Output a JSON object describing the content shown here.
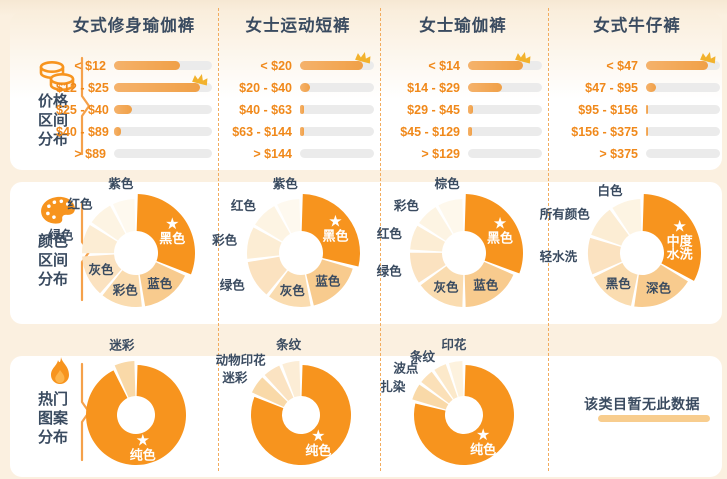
{
  "columns": [
    {
      "title": "女式修身瑜伽裤"
    },
    {
      "title": "女士运动短裤"
    },
    {
      "title": "女士瑜伽裤"
    },
    {
      "title": "女式牛仔裤"
    }
  ],
  "rail": [
    {
      "icon": "coins-icon",
      "lines": [
        "价格",
        "区间",
        "分布"
      ]
    },
    {
      "icon": "palette-icon",
      "lines": [
        "颜色",
        "区间",
        "分布"
      ]
    },
    {
      "icon": "flame-icon",
      "lines": [
        "热门",
        "图案",
        "分布"
      ]
    }
  ],
  "no_data": {
    "text": "该类目暂无此数据",
    "row_group": "热门图案分布",
    "category": "女式牛仔裤"
  },
  "colors": {
    "accent": "#F7941E",
    "bar_fill": "#F2A75C",
    "bar_track": "#EBEBEB",
    "price_label": "#F0891B",
    "heading": "#3A4B60",
    "separator": "#F2AC5E",
    "crown": "#F2B22D",
    "page_bg": "#FBF0E0",
    "panel_bg": "#FFFFFF",
    "donut_label": "#3A4B60",
    "star": "#FFFFFF"
  },
  "chart_data": [
    {
      "type": "bar",
      "row_group": "价格区间分布",
      "category": "女式修身瑜伽裤",
      "orientation": "horizontal",
      "value_unit": "relative_share_pct_estimated",
      "categories": [
        "< $12",
        "$12 - $25",
        "$25 - $40",
        "$40 - $89",
        "> $89"
      ],
      "values": [
        67,
        88,
        18,
        7,
        0
      ],
      "crown_index": 1
    },
    {
      "type": "bar",
      "row_group": "价格区间分布",
      "category": "女士运动短裤",
      "orientation": "horizontal",
      "value_unit": "relative_share_pct_estimated",
      "categories": [
        "< $20",
        "$20 - $40",
        "$40 - $63",
        "$63 - $144",
        "> $144"
      ],
      "values": [
        85,
        14,
        5,
        5,
        0
      ],
      "crown_index": 0
    },
    {
      "type": "bar",
      "row_group": "价格区间分布",
      "category": "女士瑜伽裤",
      "orientation": "horizontal",
      "value_unit": "relative_share_pct_estimated",
      "categories": [
        "< $14",
        "$14 - $29",
        "$29 - $45",
        "$45 - $129",
        "> $129"
      ],
      "values": [
        74,
        46,
        7,
        5,
        0
      ],
      "crown_index": 0
    },
    {
      "type": "bar",
      "row_group": "价格区间分布",
      "category": "女式牛仔裤",
      "orientation": "horizontal",
      "value_unit": "relative_share_pct_estimated",
      "categories": [
        "< $47",
        "$47 - $95",
        "$95 - $156",
        "$156 - $375",
        "> $375"
      ],
      "values": [
        84,
        14,
        3,
        3,
        0
      ],
      "crown_index": 0
    },
    {
      "type": "pie",
      "row_group": "颜色区间分布",
      "category": "女式修身瑜伽裤",
      "value_unit": "angle_deg_estimated",
      "slices": [
        {
          "label": "黑色",
          "deg": 113,
          "star": true,
          "raised": true,
          "color": "#F7941E",
          "labelPos": "star"
        },
        {
          "label": "蓝色",
          "deg": 59,
          "color": "#F8CB8E",
          "labelPos": "in"
        },
        {
          "label": "彩色",
          "deg": 48,
          "color": "#FADCB0",
          "labelPos": "in"
        },
        {
          "label": "灰色",
          "deg": 48,
          "color": "#FBE2C0",
          "labelPos": "in"
        },
        {
          "label": "绿色",
          "deg": 35,
          "color": "#FCEDD4",
          "labelPos": "out"
        },
        {
          "label": "红色",
          "deg": 30,
          "color": "#FDF4E3",
          "labelPos": "out"
        },
        {
          "label": "紫色",
          "deg": 27,
          "color": "#FEF9EF",
          "labelPos": "out"
        }
      ]
    },
    {
      "type": "pie",
      "row_group": "颜色区间分布",
      "category": "女士运动短裤",
      "value_unit": "angle_deg_estimated",
      "slices": [
        {
          "label": "黑色",
          "deg": 105,
          "star": true,
          "raised": true,
          "color": "#F7941E",
          "labelPos": "star"
        },
        {
          "label": "蓝色",
          "deg": 63,
          "color": "#F8CB8E",
          "labelPos": "in"
        },
        {
          "label": "灰色",
          "deg": 50,
          "color": "#FADCB0",
          "labelPos": "in"
        },
        {
          "label": "绿色",
          "deg": 44,
          "color": "#FBE2C0",
          "labelPos": "out"
        },
        {
          "label": "彩色",
          "deg": 38,
          "color": "#FCEDD4",
          "labelPos": "out"
        },
        {
          "label": "红色",
          "deg": 32,
          "color": "#FDF4E3",
          "labelPos": "out"
        },
        {
          "label": "紫色",
          "deg": 28,
          "color": "#FEF9EF",
          "labelPos": "out"
        }
      ]
    },
    {
      "type": "pie",
      "row_group": "颜色区间分布",
      "category": "女士瑜伽裤",
      "value_unit": "angle_deg_estimated",
      "slices": [
        {
          "label": "黑色",
          "deg": 112,
          "star": true,
          "raised": true,
          "color": "#F7941E",
          "labelPos": "star"
        },
        {
          "label": "蓝色",
          "deg": 68,
          "color": "#F8CB8E",
          "labelPos": "in"
        },
        {
          "label": "灰色",
          "deg": 55,
          "color": "#FADCB0",
          "labelPos": "in"
        },
        {
          "label": "绿色",
          "deg": 37,
          "color": "#FBE2C0",
          "labelPos": "out"
        },
        {
          "label": "红色",
          "deg": 30,
          "color": "#FCEDD4",
          "labelPos": "out"
        },
        {
          "label": "彩色",
          "deg": 28,
          "color": "#FDF4E3",
          "labelPos": "out"
        },
        {
          "label": "棕色",
          "deg": 30,
          "color": "#FEF8EC",
          "labelPos": "out"
        }
      ]
    },
    {
      "type": "pie",
      "row_group": "颜色区间分布",
      "category": "女式牛仔裤",
      "value_unit": "angle_deg_estimated",
      "slices": [
        {
          "label": "中度水洗",
          "label_lines": [
            "中度",
            "水洗"
          ],
          "deg": 120,
          "star": true,
          "raised": true,
          "color": "#F7941E",
          "labelPos": "star"
        },
        {
          "label": "深色",
          "deg": 70,
          "color": "#F8CB8E",
          "labelPos": "in"
        },
        {
          "label": "黑色",
          "deg": 55,
          "color": "#FADCB0",
          "labelPos": "in"
        },
        {
          "label": "轻水洗",
          "deg": 43,
          "color": "#FBE2C0",
          "labelPos": "out"
        },
        {
          "label": "所有颜色",
          "deg": 37,
          "color": "#FCEDD4",
          "labelPos": "out"
        },
        {
          "label": "白色",
          "deg": 35,
          "color": "#FDF4E3",
          "labelPos": "out"
        }
      ]
    },
    {
      "type": "pie",
      "row_group": "热门图案分布",
      "category": "女式修身瑜伽裤",
      "value_unit": "angle_deg_estimated",
      "slices": [
        {
          "label": "纯色",
          "deg": 335,
          "star": true,
          "color": "#F7941E",
          "labelPos": "star"
        },
        {
          "label": "迷彩",
          "deg": 25,
          "raised": true,
          "color": "#F9D9A8",
          "labelPos": "out"
        }
      ]
    },
    {
      "type": "pie",
      "row_group": "热门图案分布",
      "category": "女士运动短裤",
      "value_unit": "angle_deg_estimated",
      "slices": [
        {
          "label": "纯色",
          "deg": 293,
          "star": true,
          "color": "#F7941E",
          "labelPos": "star"
        },
        {
          "label": "迷彩",
          "deg": 23,
          "raised": true,
          "color": "#F9D9A8",
          "labelPos": "out"
        },
        {
          "label": "动物印花",
          "deg": 22,
          "raised": true,
          "color": "#FBE3C2",
          "labelPos": "out"
        },
        {
          "label": "条纹",
          "deg": 22,
          "raised": true,
          "color": "#FCEDD6",
          "labelPos": "out"
        }
      ]
    },
    {
      "type": "pie",
      "row_group": "热门图案分布",
      "category": "女士瑜伽裤",
      "value_unit": "angle_deg_estimated",
      "slices": [
        {
          "label": "纯色",
          "deg": 285,
          "star": true,
          "color": "#F7941E",
          "labelPos": "star"
        },
        {
          "label": "扎染",
          "deg": 21,
          "raised": true,
          "color": "#F9D9A8",
          "labelPos": "out"
        },
        {
          "label": "波点",
          "deg": 19,
          "raised": true,
          "color": "#FBE0B8",
          "labelPos": "out"
        },
        {
          "label": "条纹",
          "deg": 17,
          "raised": true,
          "color": "#FCE9CA",
          "labelPos": "out"
        },
        {
          "label": "印花",
          "deg": 18,
          "raised": true,
          "color": "#FDF2DE",
          "labelPos": "out"
        }
      ]
    }
  ]
}
